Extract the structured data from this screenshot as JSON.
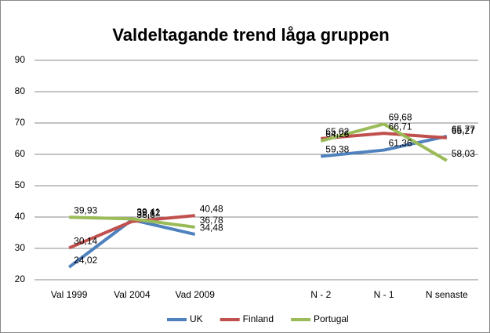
{
  "chart_data": {
    "type": "line",
    "title": "Valdeltagande trend låga gruppen",
    "categories": [
      "Val 1999",
      "Val 2004",
      "Vad 2009",
      null,
      "N - 2",
      "N - 1",
      "N senaste"
    ],
    "series": [
      {
        "name": "UK",
        "color": "#4f81bd",
        "values": [
          24.02,
          39.12,
          34.48,
          null,
          59.38,
          61.36,
          65.77
        ],
        "value_labels": [
          "24,02",
          "39,12",
          "34,48",
          null,
          "59,38",
          "61,36",
          "65,77"
        ]
      },
      {
        "name": "Finland",
        "color": "#c0504d",
        "values": [
          30.14,
          38.6,
          40.48,
          null,
          65.02,
          66.71,
          65.27
        ],
        "value_labels": [
          "30,14",
          "38,6",
          "40,48",
          null,
          "65,02",
          "66,71",
          "65,27"
        ]
      },
      {
        "name": "Portugal",
        "color": "#9bbb59",
        "values": [
          39.93,
          39.41,
          36.78,
          null,
          64.26,
          69.68,
          58.03
        ],
        "value_labels": [
          "39,93",
          "39,41",
          "36,78",
          null,
          "64,26",
          "69,68",
          "58,03"
        ]
      }
    ],
    "ylim": [
      20,
      90
    ],
    "yticks": [
      20,
      30,
      40,
      50,
      60,
      70,
      80,
      90
    ],
    "grid": true,
    "legend": "bottom"
  }
}
